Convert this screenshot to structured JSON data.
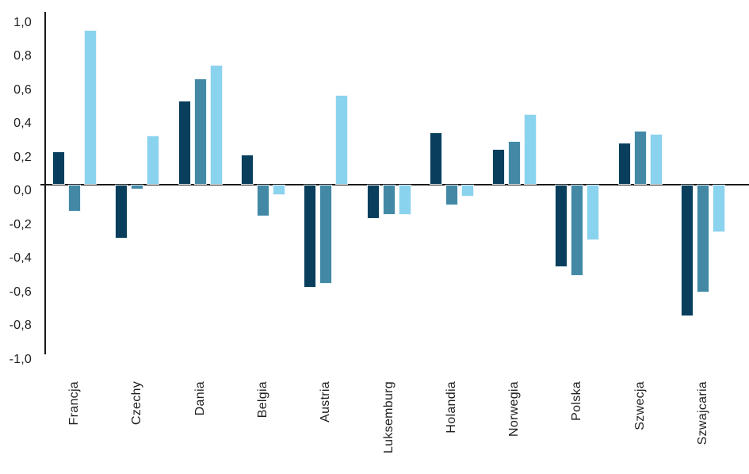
{
  "chart_data": {
    "type": "bar",
    "title": "",
    "xlabel": "",
    "ylabel": "",
    "ylim": [
      -1.0,
      1.0
    ],
    "grid": false,
    "legend": "none",
    "decimal_separator": ",",
    "categories": [
      "Francja",
      "Czechy",
      "Dania",
      "Belgia",
      "Austria",
      "Luksemburg",
      "Holandia",
      "Norwegia",
      "Polska",
      "Szwecja",
      "Szwajcaria"
    ],
    "series": [
      {
        "name": "series-1-dark-navy",
        "color": "#093f5c",
        "values": [
          0.2,
          -0.32,
          0.5,
          0.18,
          -0.61,
          -0.2,
          0.31,
          0.21,
          -0.49,
          0.25,
          -0.78
        ]
      },
      {
        "name": "series-2-steel-blue",
        "color": "#4389a6",
        "values": [
          -0.16,
          -0.03,
          0.63,
          -0.19,
          -0.59,
          -0.18,
          -0.12,
          0.26,
          -0.54,
          0.32,
          -0.64
        ]
      },
      {
        "name": "series-3-light-blue",
        "color": "#8ad3ef",
        "values": [
          0.92,
          0.29,
          0.71,
          -0.06,
          0.53,
          -0.18,
          -0.07,
          0.42,
          -0.33,
          0.3,
          -0.28
        ]
      }
    ],
    "y_ticks": [
      {
        "label": "1,0",
        "value": 1.0
      },
      {
        "label": "0,8",
        "value": 0.8
      },
      {
        "label": "0,6",
        "value": 0.6
      },
      {
        "label": "0,4",
        "value": 0.4
      },
      {
        "label": "0,2",
        "value": 0.2
      },
      {
        "label": "0,0",
        "value": 0.0
      },
      {
        "label": "-0,2",
        "value": -0.2
      },
      {
        "label": "-0,4",
        "value": -0.4
      },
      {
        "label": "-0,6",
        "value": -0.6
      },
      {
        "label": "-0,8",
        "value": -0.8
      },
      {
        "label": "-1,0",
        "value": -1.0
      }
    ]
  },
  "colors": {
    "background": "#ffffff",
    "axis": "#1a1a1a",
    "tick_text": "#1f1f1f",
    "bar_border": "#e8f3fa"
  }
}
